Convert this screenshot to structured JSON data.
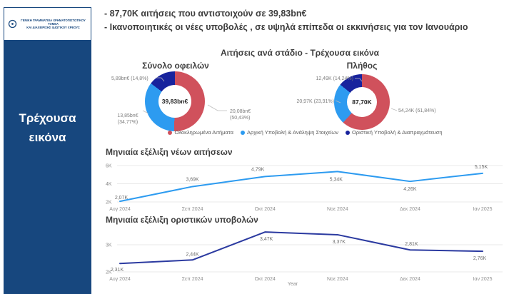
{
  "colors": {
    "navy": "#17477E",
    "red": "#D0515C",
    "blue": "#2D9BF0",
    "slice_navy": "#18239D",
    "line2_navy": "#2B3AA0"
  },
  "sidebar": {
    "logo_line1": "ΓΕΝΙΚΗ ΓΡΑΜΜΑΤΕΙΑ ΧΡΗΜΑΤΟΠΙΣΤΩΤΙΚΟΥ ΤΟΜΕΑ",
    "logo_line2": "ΚΑΙ ΔΙΑΧΕΙΡΙΣΗΣ ΙΔΙΩΤΙΚΟΥ ΧΡΕΟΥΣ",
    "nav_label": "Τρέχουσα εικόνα"
  },
  "header": {
    "bullets": [
      "- 87,70Κ  αιτήσεις που αντιστοιχούν σε  39,83bn€",
      "- Ικανοποιητικές οι νέες υποβολές , σε υψηλά επίπεδα οι εκκινήσεις για τον Ιανουάριο"
    ]
  },
  "section_title": "Αιτήσεις ανά στάδιο - Τρέχουσα εικόνα",
  "legend": [
    {
      "label": "Ολοκληρωμένα Αιτήματα",
      "color": "#D0515C"
    },
    {
      "label": "Αρχική Υποβολή & Ανάληψη Στοιχείων",
      "color": "#2D9BF0"
    },
    {
      "label": "Οριστική Υποβολή & Διαπραγμάτευση",
      "color": "#18239D"
    }
  ],
  "chart_data": [
    {
      "type": "pie",
      "title": "Σύνολο οφειλών",
      "center_label": "39,83bn€",
      "unit": "bn€",
      "slices": [
        {
          "name": "Ολοκληρωμένα Αιτήματα",
          "value": 20.08,
          "pct": 50.43,
          "callout": "20,08bn€\n(50,43%)",
          "color": "#D0515C"
        },
        {
          "name": "Αρχική Υποβολή & Ανάληψη Στοιχείων",
          "value": 13.85,
          "pct": 34.77,
          "callout": "13,85bn€\n(34,77%)",
          "color": "#2D9BF0"
        },
        {
          "name": "Οριστική Υποβολή & Διαπραγμάτευση",
          "value": 5.89,
          "pct": 14.8,
          "callout": "5,89bn€ (14,8%)",
          "color": "#18239D"
        }
      ]
    },
    {
      "type": "pie",
      "title": "Πλήθος",
      "center_label": "87,70K",
      "unit": "K",
      "slices": [
        {
          "name": "Ολοκληρωμένα Αιτήματα",
          "value": 54.24,
          "pct": 61.84,
          "callout": "54,24K (61,84%)",
          "color": "#D0515C"
        },
        {
          "name": "Αρχική Υποβολή & Ανάληψη Στοιχείων",
          "value": 20.97,
          "pct": 23.91,
          "callout": "20,97K (23,91%)",
          "color": "#2D9BF0"
        },
        {
          "name": "Οριστική Υποβολή & Διαπραγμάτευση",
          "value": 12.49,
          "pct": 14.24,
          "callout": "12,49K (14,24%)",
          "color": "#18239D"
        }
      ]
    },
    {
      "type": "line",
      "title": "Μηνιαία εξέλιξη νέων αιτήσεων",
      "x": [
        "Αυγ 2024",
        "Σεπ 2024",
        "Οκτ 2024",
        "Νοε 2024",
        "Δεκ 2024",
        "Ιαν 2025"
      ],
      "values": [
        2.07,
        3.69,
        4.79,
        5.34,
        4.26,
        5.15
      ],
      "point_labels": [
        "2,07K",
        "3,69K",
        "4,79K",
        "5,34K",
        "4,26K",
        "5,15K"
      ],
      "y_ticks": [
        {
          "v": 6,
          "label": "6K"
        },
        {
          "v": 4,
          "label": "4K"
        },
        {
          "v": 2,
          "label": "2K"
        }
      ],
      "ylim": [
        2,
        6.3
      ],
      "xlabel": "",
      "color": "#2D9BF0"
    },
    {
      "type": "line",
      "title": "Μηνιαία εξέλιξη οριστικών υποβολών",
      "x": [
        "Αυγ 2024",
        "Σεπ 2024",
        "Οκτ 2024",
        "Νοε 2024",
        "Δεκ 2024",
        "Ιαν 2025"
      ],
      "values": [
        2.31,
        2.44,
        3.47,
        3.37,
        2.81,
        2.76
      ],
      "point_labels": [
        "2,31K",
        "2,44K",
        "3,47K",
        "3,37K",
        "2,81K",
        "2,76K"
      ],
      "y_ticks": [
        {
          "v": 3,
          "label": "3K"
        },
        {
          "v": 2,
          "label": "2K"
        }
      ],
      "ylim": [
        2,
        3.7
      ],
      "xlabel": "Year",
      "color": "#2B3AA0"
    }
  ]
}
